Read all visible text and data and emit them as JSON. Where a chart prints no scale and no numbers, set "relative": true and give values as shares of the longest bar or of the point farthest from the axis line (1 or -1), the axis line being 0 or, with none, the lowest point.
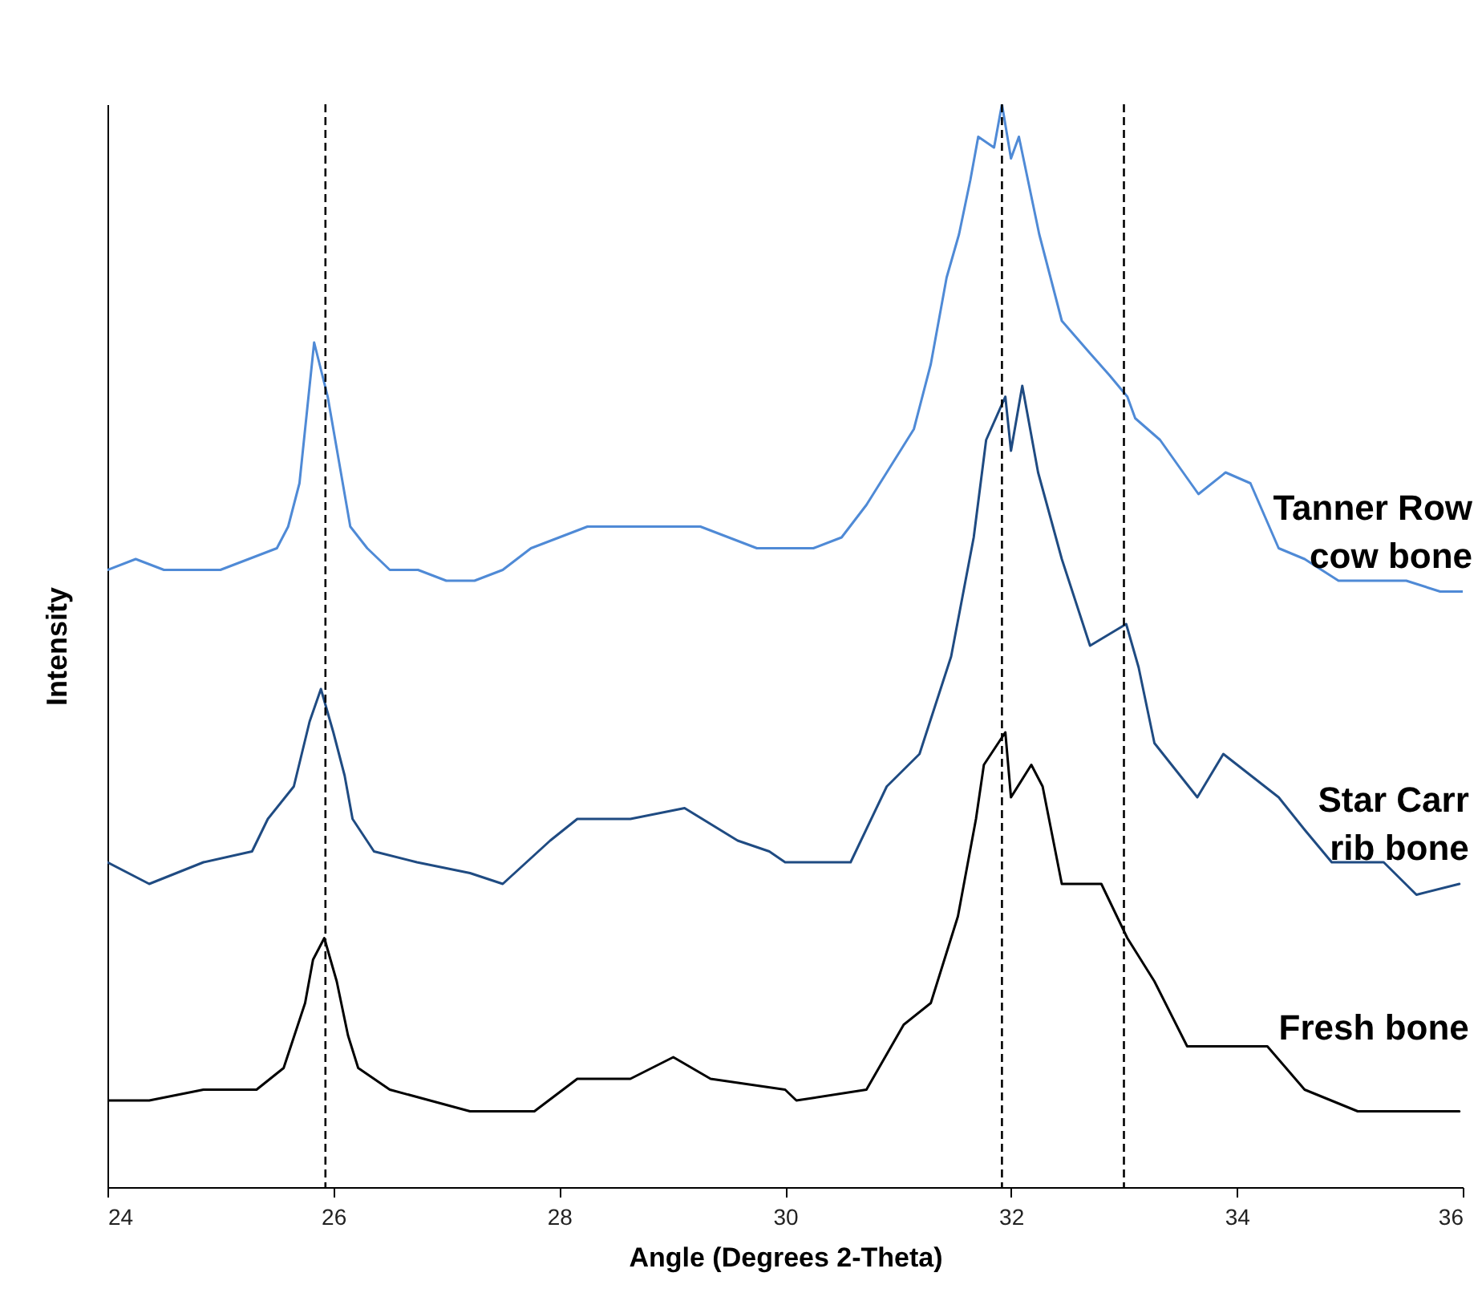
{
  "chart_data": {
    "type": "line",
    "relative": true,
    "xlabel": "Angle (Degrees 2-Theta)",
    "ylabel": "Intensity",
    "xlim": [
      24,
      36
    ],
    "xticks": [
      24,
      26,
      28,
      30,
      32,
      34,
      36
    ],
    "grid": false,
    "legend": false,
    "marker": "none",
    "line_style": "solid",
    "ref_lines": [
      {
        "axis": "x",
        "value": 25.93,
        "color": "#000000",
        "line_style": "dashed"
      },
      {
        "axis": "x",
        "value": 31.92,
        "color": "#000000",
        "line_style": "dashed"
      },
      {
        "axis": "x",
        "value": 33.0,
        "color": "#000000",
        "line_style": "dashed"
      }
    ],
    "series": [
      {
        "name": "Tanner Row cow bone",
        "color": "#4f8ad6",
        "x": [
          24,
          24.25,
          24.5,
          24.75,
          25,
          25.25,
          25.5,
          25.6,
          25.7,
          25.83,
          25.95,
          26.05,
          26.15,
          26.3,
          26.5,
          26.75,
          27,
          27.25,
          27.5,
          27.75,
          28,
          28.25,
          28.5,
          28.75,
          29,
          29.25,
          29.5,
          29.75,
          30,
          30.25,
          30.5,
          30.72,
          31.14,
          31.29,
          31.43,
          31.54,
          31.64,
          31.71,
          31.85,
          31.92,
          32.0,
          32.07,
          32.15,
          32.25,
          32.45,
          32.7,
          32.87,
          33.03,
          33.1,
          33.32,
          33.66,
          33.9,
          34.12,
          34.37,
          34.6,
          34.9,
          35.2,
          35.5,
          35.8,
          36
        ],
        "values": [
          0.57,
          0.58,
          0.57,
          0.57,
          0.57,
          0.58,
          0.59,
          0.61,
          0.65,
          0.78,
          0.73,
          0.67,
          0.61,
          0.59,
          0.57,
          0.57,
          0.56,
          0.56,
          0.57,
          0.59,
          0.6,
          0.61,
          0.61,
          0.61,
          0.61,
          0.61,
          0.6,
          0.59,
          0.59,
          0.59,
          0.6,
          0.63,
          0.7,
          0.76,
          0.84,
          0.88,
          0.93,
          0.97,
          0.96,
          1,
          0.95,
          0.97,
          0.93,
          0.88,
          0.8,
          0.77,
          0.75,
          0.73,
          0.71,
          0.69,
          0.64,
          0.66,
          0.65,
          0.59,
          0.58,
          0.56,
          0.56,
          0.56,
          0.55,
          0.55
        ]
      },
      {
        "name": "Star Carr rib bone",
        "color": "#1f4b82",
        "x": [
          24.0,
          24.37,
          24.85,
          25.28,
          25.42,
          25.65,
          25.79,
          25.89,
          26.0,
          26.1,
          26.17,
          26.36,
          26.74,
          27.21,
          27.5,
          27.92,
          28.16,
          28.63,
          29.11,
          29.58,
          29.86,
          30.0,
          30.58,
          30.9,
          31.19,
          31.47,
          31.67,
          31.78,
          31.95,
          32.0,
          32.1,
          32.24,
          32.45,
          32.7,
          33.02,
          33.13,
          33.27,
          33.65,
          33.88,
          34.37,
          34.6,
          34.84,
          35.3,
          35.59,
          35.97
        ],
        "values": [
          0.3,
          0.28,
          0.3,
          0.31,
          0.34,
          0.37,
          0.43,
          0.46,
          0.42,
          0.38,
          0.34,
          0.31,
          0.3,
          0.29,
          0.28,
          0.32,
          0.34,
          0.34,
          0.35,
          0.32,
          0.31,
          0.3,
          0.3,
          0.37,
          0.4,
          0.49,
          0.6,
          0.69,
          0.73,
          0.68,
          0.74,
          0.66,
          0.58,
          0.5,
          0.52,
          0.48,
          0.41,
          0.36,
          0.4,
          0.36,
          0.33,
          0.3,
          0.3,
          0.27,
          0.28
        ]
      },
      {
        "name": "Fresh bone",
        "color": "#000000",
        "x": [
          24.0,
          24.37,
          24.85,
          25.32,
          25.56,
          25.75,
          25.82,
          25.92,
          26.03,
          26.13,
          26.22,
          26.5,
          27.21,
          27.78,
          28.16,
          28.63,
          29.01,
          29.34,
          30.0,
          30.1,
          30.72,
          31.05,
          31.29,
          31.53,
          31.69,
          31.76,
          31.95,
          32.0,
          32.18,
          32.28,
          32.45,
          32.8,
          33.03,
          33.27,
          33.56,
          33.88,
          34.27,
          34.6,
          35.07,
          35.54,
          35.97
        ],
        "values": [
          0.08,
          0.08,
          0.09,
          0.09,
          0.11,
          0.17,
          0.21,
          0.23,
          0.19,
          0.14,
          0.11,
          0.09,
          0.07,
          0.07,
          0.1,
          0.1,
          0.12,
          0.1,
          0.09,
          0.08,
          0.09,
          0.15,
          0.17,
          0.25,
          0.34,
          0.39,
          0.42,
          0.36,
          0.39,
          0.37,
          0.28,
          0.28,
          0.23,
          0.19,
          0.13,
          0.13,
          0.13,
          0.09,
          0.07,
          0.07,
          0.07
        ]
      }
    ]
  }
}
